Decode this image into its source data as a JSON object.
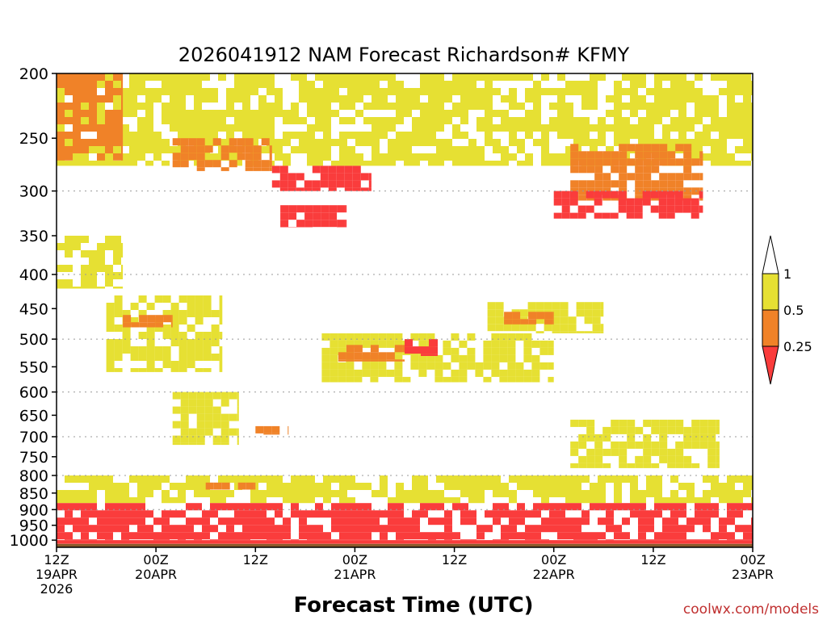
{
  "chart_data": {
    "type": "heatmap",
    "title": "2026041912 NAM Forecast Richardson# KFMY",
    "xlabel": "Forecast Time (UTC)",
    "ylabel": "",
    "y_scale": "log-pressure",
    "ylim": [
      1025,
      200
    ],
    "xlim_hours": [
      0,
      84
    ],
    "y_ticks": [
      200,
      250,
      300,
      350,
      400,
      450,
      500,
      550,
      600,
      650,
      700,
      750,
      800,
      850,
      900,
      950,
      1000
    ],
    "y_gridlines": [
      300,
      400,
      500,
      600,
      700,
      800,
      900
    ],
    "x_ticks": [
      {
        "hour": 0,
        "time": "12Z",
        "date": "19APR",
        "year": "2026"
      },
      {
        "hour": 12,
        "time": "00Z",
        "date": "20APR",
        "year": ""
      },
      {
        "hour": 24,
        "time": "12Z",
        "date": "",
        "year": ""
      },
      {
        "hour": 36,
        "time": "00Z",
        "date": "21APR",
        "year": ""
      },
      {
        "hour": 48,
        "time": "12Z",
        "date": "",
        "year": ""
      },
      {
        "hour": 60,
        "time": "00Z",
        "date": "22APR",
        "year": ""
      },
      {
        "hour": 72,
        "time": "12Z",
        "date": "",
        "year": ""
      },
      {
        "hour": 84,
        "time": "00Z",
        "date": "23APR",
        "year": ""
      }
    ],
    "legend": {
      "placement": "right",
      "labels": [
        "1",
        "0.5",
        "0.25"
      ],
      "bins": [
        {
          "range": "0.5-1",
          "color": "#e6e033"
        },
        {
          "range": "0.25-0.5",
          "color": "#f08228"
        },
        {
          "range": "<0.25",
          "color": "#fa3c3c"
        }
      ]
    },
    "series": [
      {
        "name": "Ri 0.5-1",
        "color": "#e6e033",
        "regions": [
          {
            "t": [
              0,
              84
            ],
            "p": [
              200,
              275
            ]
          },
          {
            "t": [
              0,
              8
            ],
            "p": [
              350,
              420
            ]
          },
          {
            "t": [
              6,
              20
            ],
            "p": [
              430,
              560
            ]
          },
          {
            "t": [
              14,
              22
            ],
            "p": [
              600,
              720
            ]
          },
          {
            "t": [
              32,
              60
            ],
            "p": [
              490,
              580
            ]
          },
          {
            "t": [
              52,
              66
            ],
            "p": [
              440,
              490
            ]
          },
          {
            "t": [
              62,
              80
            ],
            "p": [
              660,
              780
            ]
          },
          {
            "t": [
              0,
              84
            ],
            "p": [
              800,
              880
            ]
          }
        ]
      },
      {
        "name": "Ri 0.25-0.5",
        "color": "#f08228",
        "regions": [
          {
            "t": [
              0,
              8
            ],
            "p": [
              200,
              270
            ]
          },
          {
            "t": [
              14,
              26
            ],
            "p": [
              250,
              280
            ]
          },
          {
            "t": [
              62,
              78
            ],
            "p": [
              255,
              310
            ]
          },
          {
            "t": [
              8,
              14
            ],
            "p": [
              460,
              480
            ]
          },
          {
            "t": [
              34,
              42
            ],
            "p": [
              510,
              540
            ]
          },
          {
            "t": [
              54,
              60
            ],
            "p": [
              455,
              475
            ]
          },
          {
            "t": [
              24,
              28
            ],
            "p": [
              675,
              695
            ]
          },
          {
            "t": [
              18,
              24
            ],
            "p": [
              820,
              840
            ]
          }
        ]
      },
      {
        "name": "Ri <0.25",
        "color": "#fa3c3c",
        "regions": [
          {
            "t": [
              26,
              38
            ],
            "p": [
              275,
              300
            ]
          },
          {
            "t": [
              27,
              35
            ],
            "p": [
              315,
              340
            ]
          },
          {
            "t": [
              60,
              78
            ],
            "p": [
              300,
              330
            ]
          },
          {
            "t": [
              42,
              46
            ],
            "p": [
              500,
              530
            ]
          },
          {
            "t": [
              0,
              84
            ],
            "p": [
              880,
              1000
            ]
          },
          {
            "t": [
              0,
              84
            ],
            "p": [
              1000,
              1013
            ]
          }
        ]
      }
    ],
    "ground": {
      "label": "surface",
      "color": "#8b5a2b"
    }
  },
  "credit": "coolwx.com/models"
}
